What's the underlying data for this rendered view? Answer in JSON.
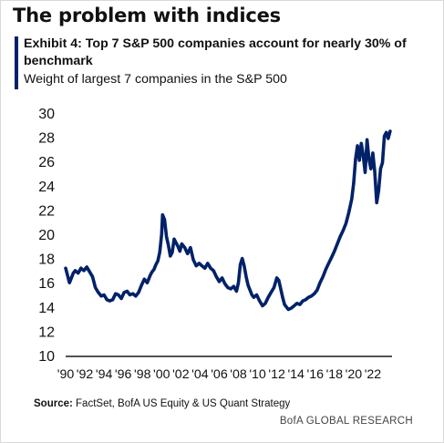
{
  "header": {
    "headline": "The problem with indices",
    "exhibit_title": "Exhibit 4: Top 7 S&P 500 companies account for nearly 30% of benchmark",
    "exhibit_subtitle": "Weight of largest 7 companies in the S&P 500"
  },
  "footer": {
    "source_label": "Source:",
    "source_text": "FactSet, BofA US Equity & US Quant Strategy",
    "credit": "BofA GLOBAL RESEARCH"
  },
  "colors": {
    "line": "#012169",
    "accent_bar": "#012169",
    "axis": "#1a1a1a",
    "text": "#111111"
  },
  "chart_data": {
    "type": "line",
    "title": "Weight of largest 7 companies in the S&P 500",
    "xlabel": "",
    "ylabel": "",
    "ylim": [
      10,
      30
    ],
    "yticks": [
      10,
      12,
      14,
      16,
      18,
      20,
      22,
      24,
      26,
      28,
      30
    ],
    "xlim": [
      1990,
      2024
    ],
    "xticks": [
      {
        "value": 1990,
        "label": "'90"
      },
      {
        "value": 1992,
        "label": "'92"
      },
      {
        "value": 1994,
        "label": "'94"
      },
      {
        "value": 1996,
        "label": "'96"
      },
      {
        "value": 1998,
        "label": "'98"
      },
      {
        "value": 2000,
        "label": "'00"
      },
      {
        "value": 2002,
        "label": "'02"
      },
      {
        "value": 2004,
        "label": "'04"
      },
      {
        "value": 2006,
        "label": "'06"
      },
      {
        "value": 2008,
        "label": "'08"
      },
      {
        "value": 2010,
        "label": "'10"
      },
      {
        "value": 2012,
        "label": "'12"
      },
      {
        "value": 2014,
        "label": "'14"
      },
      {
        "value": 2016,
        "label": "'16"
      },
      {
        "value": 2018,
        "label": "'18"
      },
      {
        "value": 2020,
        "label": "'20"
      },
      {
        "value": 2022,
        "label": "'22"
      }
    ],
    "grid": false,
    "legend": "none",
    "series": [
      {
        "x": [
          1990.0,
          1990.2,
          1990.4,
          1990.6,
          1990.8,
          1991.0,
          1991.3,
          1991.6,
          1991.9,
          1992.2,
          1992.5,
          1992.8,
          1993.1,
          1993.4,
          1993.7,
          1994.0,
          1994.3,
          1994.6,
          1994.9,
          1995.2,
          1995.5,
          1995.8,
          1996.1,
          1996.4,
          1996.7,
          1997.0,
          1997.3,
          1997.6,
          1997.9,
          1998.2,
          1998.5,
          1998.8,
          1999.0,
          1999.2,
          1999.4,
          1999.6,
          1999.8,
          2000.0,
          2000.1,
          2000.3,
          2000.5,
          2000.7,
          2000.9,
          2001.1,
          2001.3,
          2001.5,
          2001.7,
          2001.9,
          2002.1,
          2002.4,
          2002.7,
          2003.0,
          2003.3,
          2003.6,
          2003.9,
          2004.2,
          2004.5,
          2004.8,
          2005.1,
          2005.4,
          2005.7,
          2006.0,
          2006.3,
          2006.6,
          2006.9,
          2007.2,
          2007.5,
          2007.8,
          2008.0,
          2008.2,
          2008.4,
          2008.6,
          2008.8,
          2009.0,
          2009.2,
          2009.4,
          2009.6,
          2009.9,
          2010.2,
          2010.5,
          2010.8,
          2011.1,
          2011.4,
          2011.7,
          2012.0,
          2012.2,
          2012.4,
          2012.6,
          2012.8,
          2013.0,
          2013.2,
          2013.5,
          2013.8,
          2014.1,
          2014.4,
          2014.7,
          2015.0,
          2015.3,
          2015.6,
          2015.9,
          2016.2,
          2016.5,
          2016.8,
          2017.1,
          2017.4,
          2017.7,
          2018.0,
          2018.3,
          2018.6,
          2018.9,
          2019.2,
          2019.5,
          2019.8,
          2020.0,
          2020.2,
          2020.4,
          2020.6,
          2020.8,
          2021.0,
          2021.2,
          2021.4,
          2021.6,
          2021.8,
          2022.0,
          2022.2,
          2022.4,
          2022.6,
          2022.8,
          2023.0,
          2023.2,
          2023.4,
          2023.6,
          2023.8
        ],
        "y": [
          17.2,
          16.6,
          16.0,
          16.4,
          16.8,
          17.0,
          16.8,
          17.2,
          17.0,
          17.3,
          16.9,
          16.5,
          15.6,
          15.2,
          14.9,
          15.0,
          14.6,
          14.5,
          14.6,
          15.1,
          15.0,
          14.7,
          15.2,
          15.3,
          15.0,
          15.1,
          14.9,
          15.2,
          15.8,
          16.3,
          16.0,
          16.6,
          16.9,
          17.1,
          17.5,
          17.8,
          18.5,
          20.0,
          21.6,
          21.2,
          19.8,
          19.1,
          18.2,
          18.5,
          19.6,
          19.3,
          19.0,
          18.6,
          19.2,
          18.9,
          18.4,
          18.9,
          17.9,
          17.4,
          17.6,
          17.4,
          17.2,
          17.6,
          17.2,
          17.0,
          16.5,
          16.1,
          16.4,
          15.9,
          15.6,
          15.5,
          15.7,
          15.3,
          16.0,
          17.5,
          18.0,
          17.4,
          16.5,
          15.8,
          15.4,
          15.0,
          14.8,
          15.0,
          14.5,
          14.1,
          14.3,
          14.8,
          15.2,
          15.6,
          16.4,
          16.2,
          15.5,
          14.8,
          14.2,
          14.0,
          13.8,
          13.9,
          14.1,
          14.3,
          14.2,
          14.5,
          14.6,
          14.8,
          14.9,
          15.1,
          15.4,
          16.0,
          16.5,
          17.1,
          17.6,
          18.1,
          18.6,
          19.2,
          19.8,
          20.3,
          20.9,
          21.8,
          22.9,
          24.2,
          26.2,
          27.3,
          26.1,
          27.5,
          26.5,
          25.1,
          27.8,
          26.2,
          25.4,
          26.7,
          25.2,
          22.6,
          23.6,
          25.4,
          25.9,
          28.1,
          28.4,
          27.9,
          28.5
        ]
      }
    ]
  }
}
